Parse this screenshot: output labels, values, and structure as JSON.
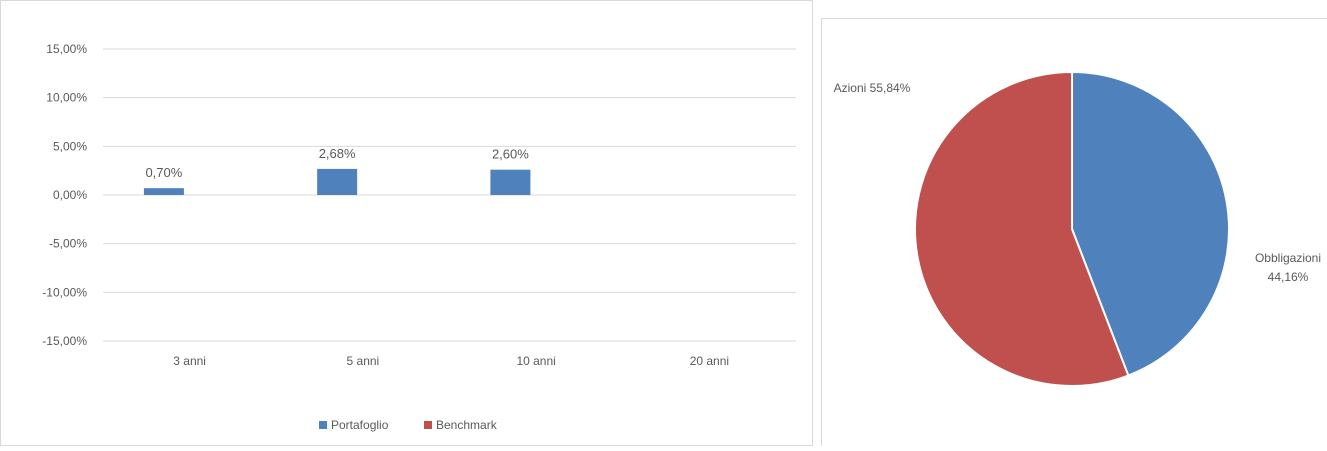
{
  "colors": {
    "portafoglio": "#4f81bd",
    "benchmark": "#c0504d",
    "grid": "#d9d9d9",
    "text": "#595959"
  },
  "chart_data": [
    {
      "type": "bar",
      "categories": [
        "3 anni",
        "5 anni",
        "10 anni",
        "20 anni"
      ],
      "series": [
        {
          "name": "Portafoglio",
          "values": [
            0.7,
            2.68,
            2.6,
            null
          ],
          "labels": [
            "0,70%",
            "2,68%",
            "2,60%",
            ""
          ]
        },
        {
          "name": "Benchmark",
          "values": [
            null,
            null,
            null,
            null
          ],
          "labels": [
            "",
            "",
            "",
            ""
          ]
        }
      ],
      "ylim": [
        -15,
        15
      ],
      "yticks": [
        15,
        10,
        5,
        0,
        -5,
        -10,
        -15
      ],
      "ytick_labels": [
        "15,00%",
        "10,00%",
        "5,00%",
        "0,00%",
        "-5,00%",
        "-10,00%",
        "-15,00%"
      ],
      "grid": true,
      "legend_position": "bottom"
    },
    {
      "type": "pie",
      "slices": [
        {
          "label": "Obbligazioni",
          "value": 44.16,
          "value_label": "44,16%"
        },
        {
          "label": "Azioni",
          "value": 55.84,
          "value_label": "55,84%"
        }
      ],
      "start_angle": "top",
      "direction": "clockwise"
    }
  ]
}
